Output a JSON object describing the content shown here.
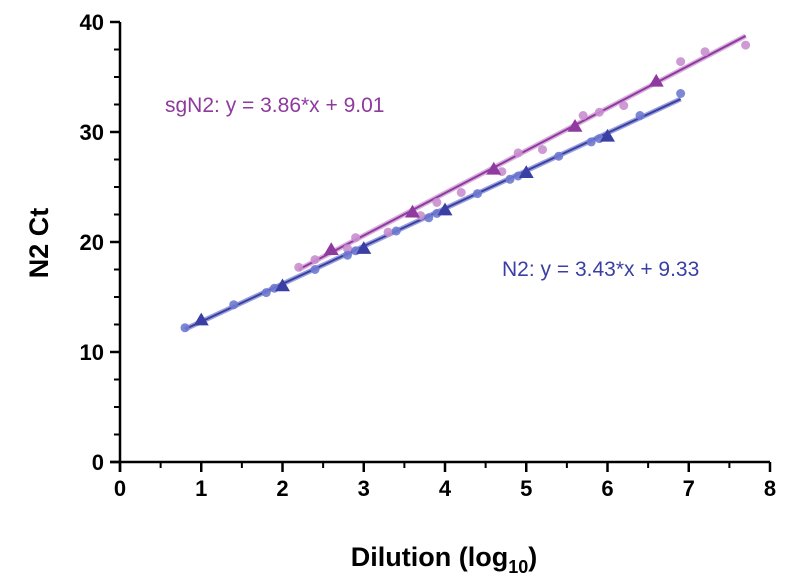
{
  "chart_data": {
    "type": "scatter",
    "title": "",
    "xlabel": "Dilution (log",
    "xlabel_sub": "10",
    "xlabel_end": ")",
    "ylabel": "N2 Ct",
    "xlim": [
      0,
      8
    ],
    "ylim": [
      0,
      40
    ],
    "xticks": [
      "0",
      "1",
      "2",
      "3",
      "4",
      "5",
      "6",
      "7",
      "8"
    ],
    "yticks": [
      "0",
      "10",
      "20",
      "30",
      "40"
    ],
    "grid": false,
    "legend": "none",
    "series": [
      {
        "name": "sgN2",
        "color": "#8e3a9e",
        "light_color": "#c98fcf",
        "equation": "sgN2: y = 3.86*x + 9.01",
        "fit": {
          "slope": 3.86,
          "intercept": 9.01,
          "x_range": [
            2.2,
            7.7
          ]
        },
        "circles": [
          {
            "x": 2.2,
            "y": 17.7
          },
          {
            "x": 2.4,
            "y": 18.4
          },
          {
            "x": 2.8,
            "y": 19.4
          },
          {
            "x": 2.9,
            "y": 20.4
          },
          {
            "x": 3.3,
            "y": 20.9
          },
          {
            "x": 3.7,
            "y": 22.4
          },
          {
            "x": 3.9,
            "y": 23.6
          },
          {
            "x": 4.2,
            "y": 24.5
          },
          {
            "x": 4.7,
            "y": 26.4
          },
          {
            "x": 4.9,
            "y": 28.1
          },
          {
            "x": 5.2,
            "y": 28.4
          },
          {
            "x": 5.7,
            "y": 31.5
          },
          {
            "x": 5.9,
            "y": 31.8
          },
          {
            "x": 6.2,
            "y": 32.4
          },
          {
            "x": 6.9,
            "y": 36.4
          },
          {
            "x": 7.2,
            "y": 37.3
          },
          {
            "x": 7.7,
            "y": 37.9
          }
        ],
        "triangles": [
          {
            "x": 2.6,
            "y": 19.3
          },
          {
            "x": 3.6,
            "y": 22.7
          },
          {
            "x": 4.6,
            "y": 26.6
          },
          {
            "x": 5.6,
            "y": 30.5
          },
          {
            "x": 6.6,
            "y": 34.6
          }
        ]
      },
      {
        "name": "N2",
        "color": "#3b3fa3",
        "light_color": "#6f7ad0",
        "equation": "N2: y = 3.43*x + 9.33",
        "fit": {
          "slope": 3.43,
          "intercept": 9.33,
          "x_range": [
            0.8,
            6.9
          ]
        },
        "circles": [
          {
            "x": 0.8,
            "y": 12.2
          },
          {
            "x": 1.4,
            "y": 14.3
          },
          {
            "x": 1.8,
            "y": 15.4
          },
          {
            "x": 1.9,
            "y": 15.8
          },
          {
            "x": 2.4,
            "y": 17.5
          },
          {
            "x": 2.8,
            "y": 18.8
          },
          {
            "x": 2.9,
            "y": 19.2
          },
          {
            "x": 3.4,
            "y": 21.0
          },
          {
            "x": 3.8,
            "y": 22.2
          },
          {
            "x": 3.9,
            "y": 22.6
          },
          {
            "x": 4.4,
            "y": 24.4
          },
          {
            "x": 4.8,
            "y": 25.7
          },
          {
            "x": 4.9,
            "y": 26.0
          },
          {
            "x": 5.4,
            "y": 27.8
          },
          {
            "x": 5.8,
            "y": 29.1
          },
          {
            "x": 5.9,
            "y": 29.4
          },
          {
            "x": 6.4,
            "y": 31.5
          },
          {
            "x": 6.9,
            "y": 33.5
          }
        ],
        "triangles": [
          {
            "x": 1.0,
            "y": 12.9
          },
          {
            "x": 2.0,
            "y": 16.0
          },
          {
            "x": 3.0,
            "y": 19.4
          },
          {
            "x": 4.0,
            "y": 22.9
          },
          {
            "x": 5.0,
            "y": 26.3
          },
          {
            "x": 6.0,
            "y": 29.6
          }
        ]
      }
    ]
  }
}
